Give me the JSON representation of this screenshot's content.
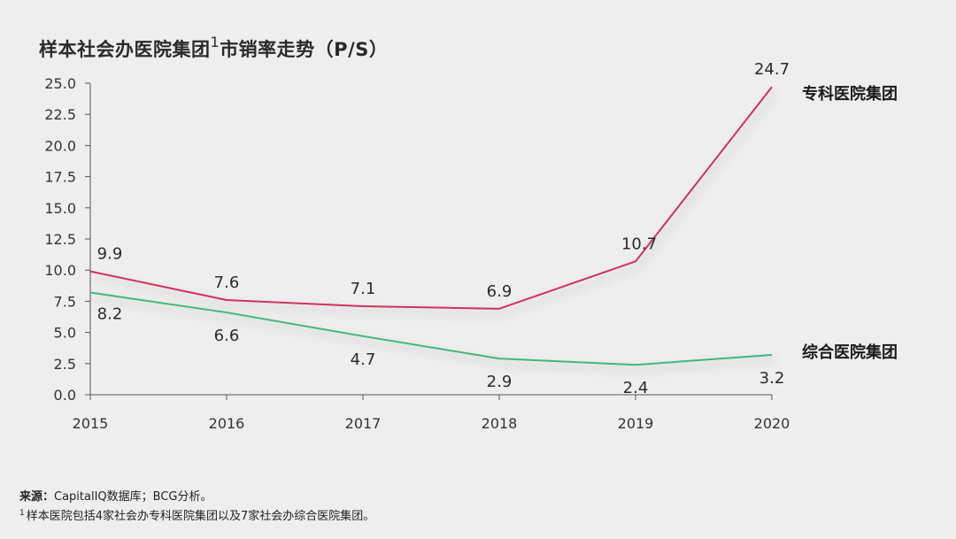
{
  "title": {
    "main": "样本社会办医院集团",
    "sup": "1",
    "rest": "市销率走势（P/S）"
  },
  "footer": {
    "source_label": "来源：",
    "source_text": "CapitalIQ数据库；BCG分析。",
    "note_mark": "1",
    "note_text": "样本医院包括4家社会办专科医院集团以及7家社会办综合医院集团。"
  },
  "chart_data": {
    "type": "line",
    "categories": [
      "2015",
      "2016",
      "2017",
      "2018",
      "2019",
      "2020"
    ],
    "ylim": [
      0,
      25
    ],
    "yticks": [
      "0.0",
      "2.5",
      "5.0",
      "7.5",
      "10.0",
      "12.5",
      "15.0",
      "17.5",
      "20.0",
      "22.5",
      "25.0"
    ],
    "grid": false,
    "series": [
      {
        "name": "专科医院集团",
        "color": "#d1305e",
        "values": [
          9.9,
          7.6,
          7.1,
          6.9,
          10.7,
          24.7
        ],
        "labels": [
          "9.9",
          "7.6",
          "7.1",
          "6.9",
          "10.7",
          "24.7"
        ]
      },
      {
        "name": "综合医院集团",
        "color": "#3fb87a",
        "values": [
          8.2,
          6.6,
          4.7,
          2.9,
          2.4,
          3.2
        ],
        "labels": [
          "8.2",
          "6.6",
          "4.7",
          "2.9",
          "2.4",
          "3.2"
        ]
      }
    ]
  }
}
